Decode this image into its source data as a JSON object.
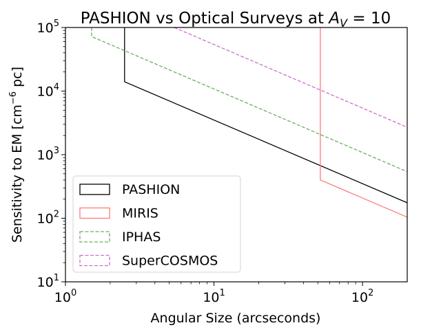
{
  "chart_data": {
    "type": "line",
    "title": "PASHION vs Optical Surveys at A_V = 10",
    "title_display": {
      "prefix": "PASHION vs Optical Surveys at ",
      "math_main": "A",
      "math_sub": "V",
      "math_rest": " = 10"
    },
    "xlabel": "Angular Size (arcseconds)",
    "ylabel_display": {
      "prefix": "Sensitivity to EM [cm",
      "sup": "−6",
      "suffix": " pc]"
    },
    "xscale": "log",
    "yscale": "log",
    "xlim": [
      1,
      200
    ],
    "ylim": [
      10,
      100000
    ],
    "grid": false,
    "legend_position": "lower-left",
    "xticks": [
      {
        "value": 1,
        "base": "10",
        "exp": "0"
      },
      {
        "value": 10,
        "base": "10",
        "exp": "1"
      },
      {
        "value": 100,
        "base": "10",
        "exp": "2"
      }
    ],
    "yticks": [
      {
        "value": 10,
        "base": "10",
        "exp": "1"
      },
      {
        "value": 100,
        "base": "10",
        "exp": "2"
      },
      {
        "value": 1000,
        "base": "10",
        "exp": "3"
      },
      {
        "value": 10000,
        "base": "10",
        "exp": "4"
      },
      {
        "value": 100000,
        "base": "10",
        "exp": "5"
      }
    ],
    "series": [
      {
        "name": "PASHION",
        "color": "#000000",
        "dash": "solid",
        "x": [
          2.5,
          2.5,
          200
        ],
        "y": [
          100000,
          14000,
          175
        ]
      },
      {
        "name": "MIRIS",
        "color": "#ff7b76",
        "dash": "solid",
        "x": [
          52,
          52,
          200
        ],
        "y": [
          100000,
          400,
          104
        ]
      },
      {
        "name": "IPHAS",
        "color": "#6aaf5f",
        "dash": "dashed",
        "x": [
          1.5,
          1.5,
          200
        ],
        "y": [
          100000,
          72000,
          540
        ]
      },
      {
        "name": "SuperCOSMOS",
        "color": "#cd6ed0",
        "dash": "dashed",
        "x": [
          5.4,
          200
        ],
        "y": [
          100000,
          2700
        ]
      }
    ]
  }
}
